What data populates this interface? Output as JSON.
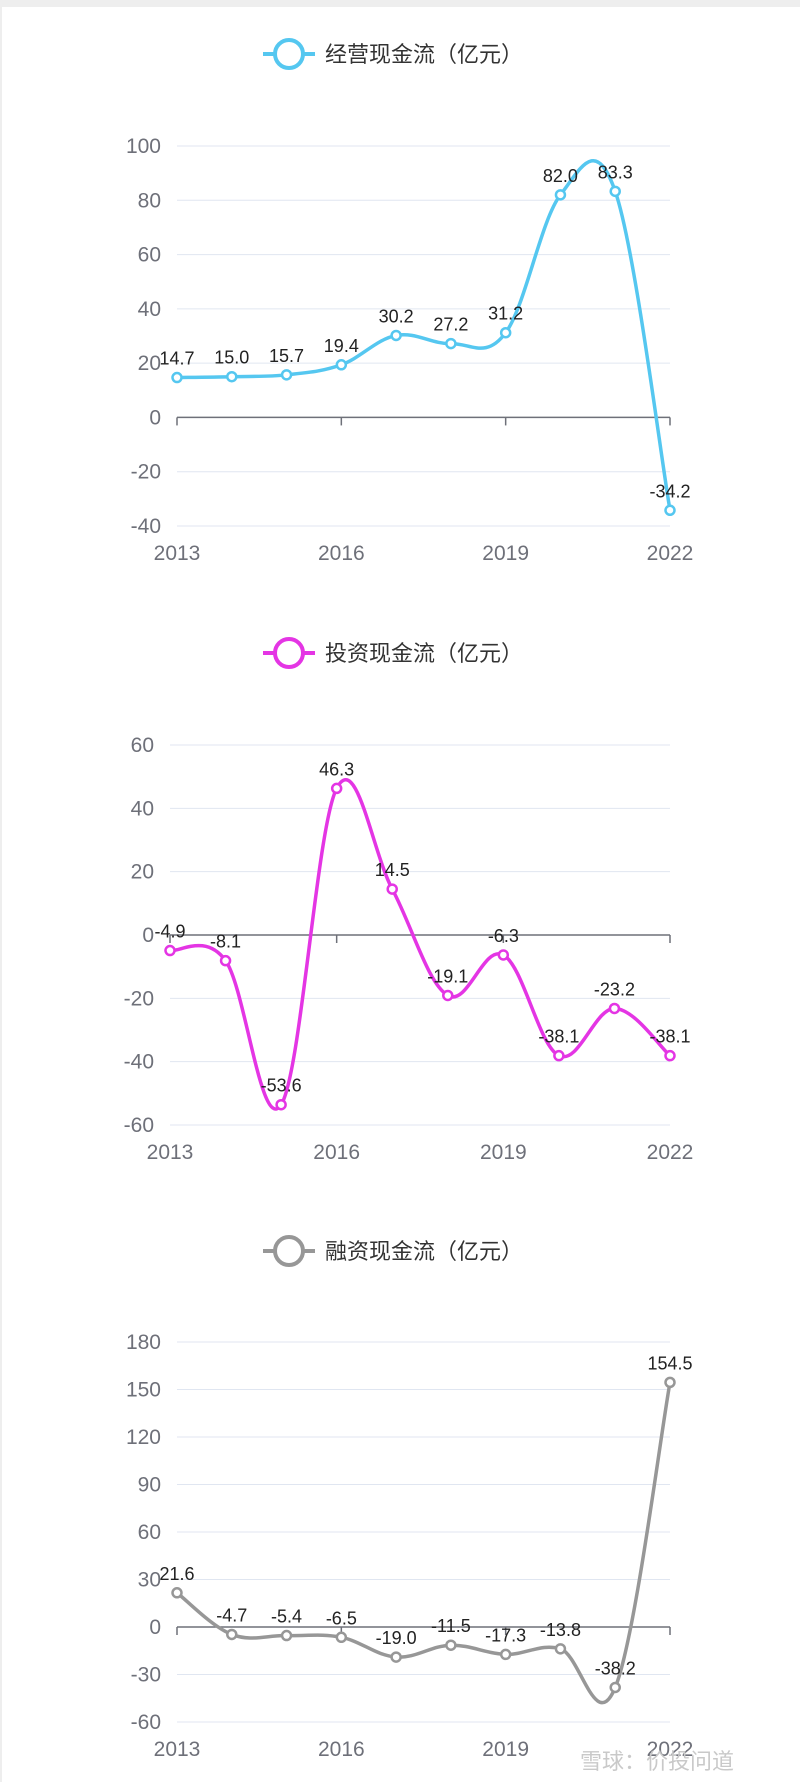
{
  "watermark": "雪球：价投问道",
  "chart_data": [
    {
      "type": "line",
      "title": "",
      "legend": "经营现金流（亿元）",
      "color": "#55c7f0",
      "smooth": true,
      "ylim": [
        -40,
        100
      ],
      "yticks": [
        -40,
        -20,
        0,
        20,
        40,
        60,
        80,
        100
      ],
      "x": [
        "2013",
        "2014",
        "2015",
        "2016",
        "2017",
        "2018",
        "2019",
        "2020",
        "2021",
        "2022"
      ],
      "xtick_labels": [
        "2013",
        "2016",
        "2019",
        "2022"
      ],
      "series": [
        {
          "name": "经营现金流（亿元）",
          "values": [
            14.7,
            15.0,
            15.7,
            19.4,
            30.2,
            27.2,
            31.2,
            82.0,
            83.3,
            -34.2
          ]
        }
      ],
      "data_labels": [
        "14.7",
        "15.0",
        "15.7",
        "19.4",
        "30.2",
        "27.2",
        "31.2",
        "82.0",
        "83.3",
        "-34.2"
      ],
      "legend_position": "top-center",
      "grid": true
    },
    {
      "type": "line",
      "title": "",
      "legend": "投资现金流（亿元）",
      "color": "#e435e4",
      "smooth": true,
      "ylim": [
        -60,
        60
      ],
      "yticks": [
        -60,
        -40,
        -20,
        0,
        20,
        40,
        60
      ],
      "x": [
        "2013",
        "2014",
        "2015",
        "2016",
        "2017",
        "2018",
        "2019",
        "2020",
        "2021",
        "2022"
      ],
      "xtick_labels": [
        "2013",
        "2016",
        "2019",
        "2022"
      ],
      "series": [
        {
          "name": "投资现金流（亿元）",
          "values": [
            -4.9,
            -8.1,
            -53.6,
            46.3,
            14.5,
            -19.1,
            -6.3,
            -38.1,
            -23.2,
            -38.1
          ]
        }
      ],
      "data_labels": [
        "-4.9",
        "-8.1",
        "-53.6",
        "46.3",
        "14.5",
        "-19.1",
        "-6.3",
        "-38.1",
        "-23.2",
        "-38.1"
      ],
      "legend_position": "top-center",
      "grid": true
    },
    {
      "type": "line",
      "title": "",
      "legend": "融资现金流（亿元）",
      "color": "#979797",
      "smooth": true,
      "ylim": [
        -60,
        180
      ],
      "yticks": [
        -60,
        -30,
        0,
        30,
        60,
        90,
        120,
        150,
        180
      ],
      "x": [
        "2013",
        "2014",
        "2015",
        "2016",
        "2017",
        "2018",
        "2019",
        "2020",
        "2021",
        "2022"
      ],
      "xtick_labels": [
        "2013",
        "2016",
        "2019",
        "2022"
      ],
      "series": [
        {
          "name": "融资现金流（亿元）",
          "values": [
            21.6,
            -4.7,
            -5.4,
            -6.5,
            -19.0,
            -11.5,
            -17.3,
            -13.8,
            -38.2,
            154.5
          ]
        }
      ],
      "data_labels": [
        "21.6",
        "-4.7",
        "-5.4",
        "-6.5",
        "-19.0",
        "-11.5",
        "-17.3",
        "-13.8",
        "-38.2",
        "154.5"
      ],
      "legend_position": "top-center",
      "grid": true
    }
  ]
}
